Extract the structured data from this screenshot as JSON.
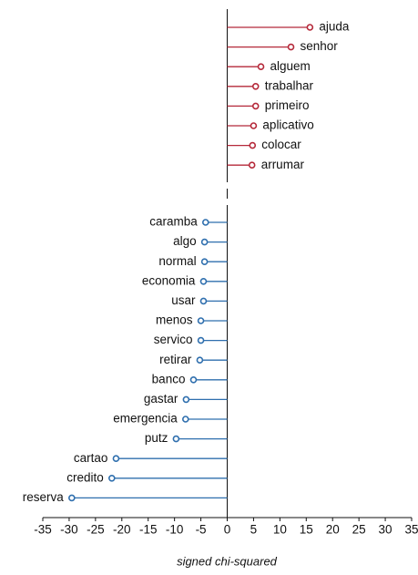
{
  "chart_data": {
    "type": "lollipop",
    "x_label": "signed chi-squared",
    "categories": [
      "ajuda",
      "senhor",
      "alguem",
      "trabalhar",
      "primeiro",
      "aplicativo",
      "colocar",
      "arrumar",
      "caramba",
      "algo",
      "normal",
      "economia",
      "usar",
      "menos",
      "servico",
      "retirar",
      "banco",
      "gastar",
      "emergencia",
      "putz",
      "cartao",
      "credito",
      "reserva"
    ],
    "values": [
      15.7,
      12.1,
      6.4,
      5.4,
      5.4,
      5.0,
      4.8,
      4.7,
      -4.1,
      -4.3,
      -4.3,
      -4.5,
      -4.5,
      -5.0,
      -5.0,
      -5.2,
      -6.4,
      -7.8,
      -7.9,
      -9.7,
      -21.1,
      -21.9,
      -29.5
    ],
    "colors": {
      "positive": "#b5293a",
      "negative": "#2f6fae"
    },
    "xlim": [
      -35,
      35
    ],
    "xticks": [
      -35,
      -30,
      -25,
      -20,
      -15,
      -10,
      -5,
      0,
      5,
      10,
      15,
      20,
      25,
      30,
      35
    ]
  }
}
